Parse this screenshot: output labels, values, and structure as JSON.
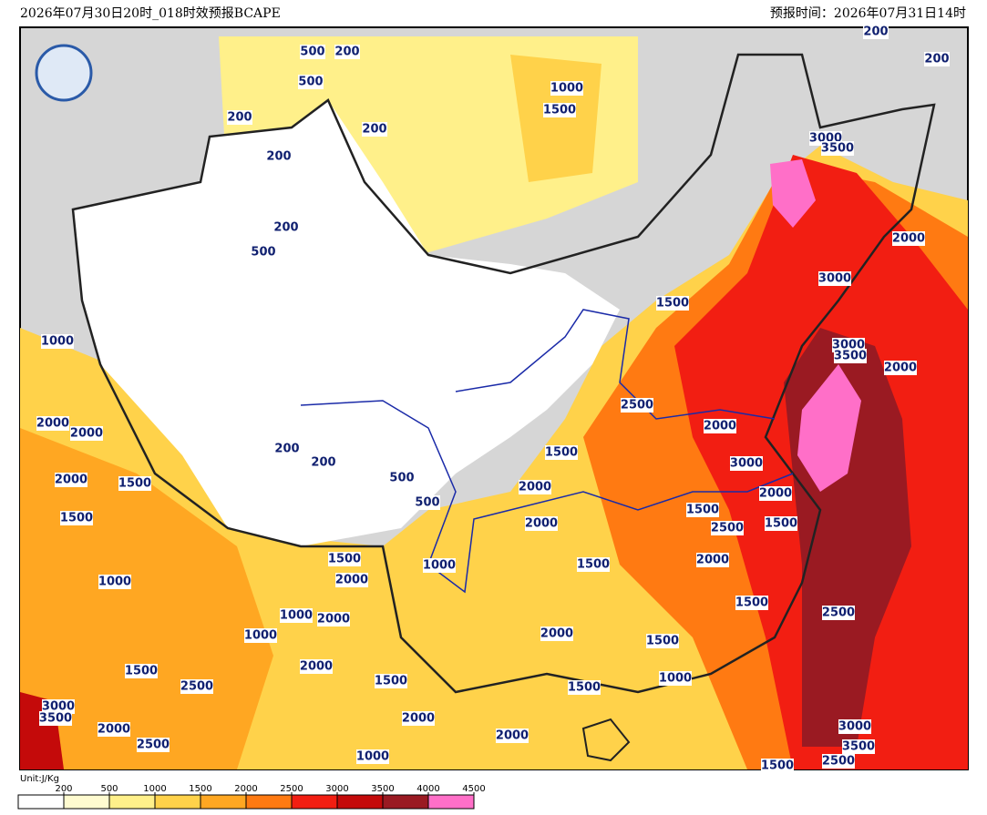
{
  "header": {
    "left": "2026年07月30日20时_018时效预报BCAPE",
    "right": "预报时间：2026年07月31日14时"
  },
  "map": {
    "contour_labels": [
      "500",
      "200",
      "500",
      "200",
      "200",
      "200",
      "1000",
      "1500",
      "200",
      "500",
      "200",
      "200",
      "3000",
      "3500",
      "2000",
      "3000",
      "1500",
      "3000",
      "3500",
      "2000",
      "1000",
      "2500",
      "2000",
      "2000",
      "2000",
      "1500",
      "3000",
      "2000",
      "1500",
      "200",
      "200",
      "2000",
      "500",
      "500",
      "2000",
      "1500",
      "2500",
      "1500",
      "1500",
      "2000",
      "1500",
      "2000",
      "1500",
      "2000",
      "1000",
      "1000",
      "1500",
      "2500",
      "1000",
      "2000",
      "2000",
      "1000",
      "1500",
      "2000",
      "1500",
      "2500",
      "1500",
      "1500",
      "1000",
      "3000",
      "3500",
      "2000",
      "2000",
      "3000",
      "2000",
      "2500",
      "3500",
      "1000",
      "1500",
      "2500"
    ]
  },
  "colorbar": {
    "unit": "Unit:J/Kg",
    "ticks": [
      200,
      500,
      1000,
      1500,
      2000,
      2500,
      3000,
      3500,
      4000,
      4500
    ],
    "colors": [
      "#ffffff",
      "#fffbd0",
      "#fff08a",
      "#ffd24a",
      "#ffa722",
      "#ff7a12",
      "#f21e12",
      "#c40a0a",
      "#9a1a22",
      "#ff6fc8"
    ]
  }
}
